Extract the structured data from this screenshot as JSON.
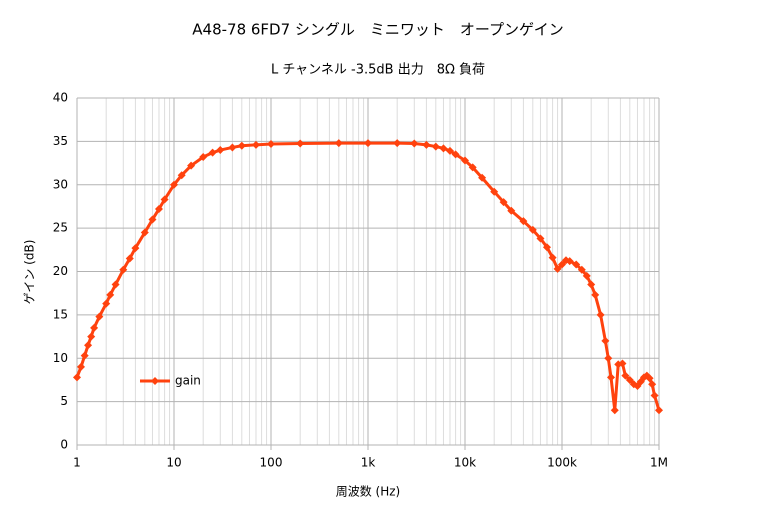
{
  "chart_data": {
    "type": "line",
    "title": "A48-78 6FD7 シングル　ミニワット　オープンゲイン",
    "subtitle": "L チャンネル  -3.5dB 出力　8Ω 負荷",
    "x_label": "周波数 (Hz)",
    "y_label": "ゲイン (dB)",
    "x_scale": "log",
    "grid": true,
    "minor_grid": true,
    "legend": "left",
    "xlim": [
      1,
      1000000
    ],
    "ylim": [
      0,
      40
    ],
    "xticks": [
      1,
      10,
      100,
      {
        "value": 1000,
        "label": "1k"
      },
      {
        "value": 10000,
        "label": "10k"
      },
      {
        "value": 100000,
        "label": "100k"
      },
      {
        "value": 1000000,
        "label": "1M"
      }
    ],
    "yticks": [
      0,
      5,
      10,
      15,
      20,
      25,
      30,
      35,
      40
    ],
    "x": [
      1,
      1.1,
      1.2,
      1.3,
      1.4,
      1.5,
      1.7,
      2,
      2.2,
      2.5,
      3,
      3.5,
      4,
      5,
      6,
      7,
      8,
      10,
      12,
      15,
      20,
      25,
      30,
      40,
      50,
      70,
      100,
      200,
      500,
      1000,
      2000,
      3000,
      4000,
      5000,
      6000,
      7000,
      8000,
      10000,
      12000,
      15000,
      20000,
      25000,
      30000,
      40000,
      50000,
      60000,
      70000,
      80000,
      90000,
      100000,
      110000,
      120000,
      140000,
      160000,
      180000,
      200000,
      220000,
      250000,
      280000,
      300000,
      320000,
      350000,
      380000,
      420000,
      450000,
      500000,
      550000,
      600000,
      650000,
      700000,
      750000,
      800000,
      850000,
      900000,
      1000000
    ],
    "series": [
      {
        "name": "gain",
        "color": "#ff420e",
        "values": [
          7.8,
          9,
          10.3,
          11.5,
          12.5,
          13.5,
          14.8,
          16.3,
          17.3,
          18.5,
          20.2,
          21.5,
          22.7,
          24.5,
          26,
          27.2,
          28.3,
          30,
          31.1,
          32.2,
          33.2,
          33.7,
          34,
          34.3,
          34.5,
          34.6,
          34.7,
          34.75,
          34.8,
          34.8,
          34.8,
          34.75,
          34.6,
          34.4,
          34.2,
          33.9,
          33.5,
          32.8,
          32,
          30.8,
          29.2,
          28,
          27,
          25.8,
          24.8,
          23.8,
          22.8,
          21.6,
          20.3,
          20.8,
          21.3,
          21.2,
          20.8,
          20.2,
          19.5,
          18.5,
          17.3,
          15,
          12,
          10,
          7.8,
          4,
          9.3,
          9.4,
          8,
          7.5,
          7,
          6.8,
          7.3,
          7.8,
          8,
          7.7,
          7,
          5.7,
          4
        ]
      }
    ]
  }
}
